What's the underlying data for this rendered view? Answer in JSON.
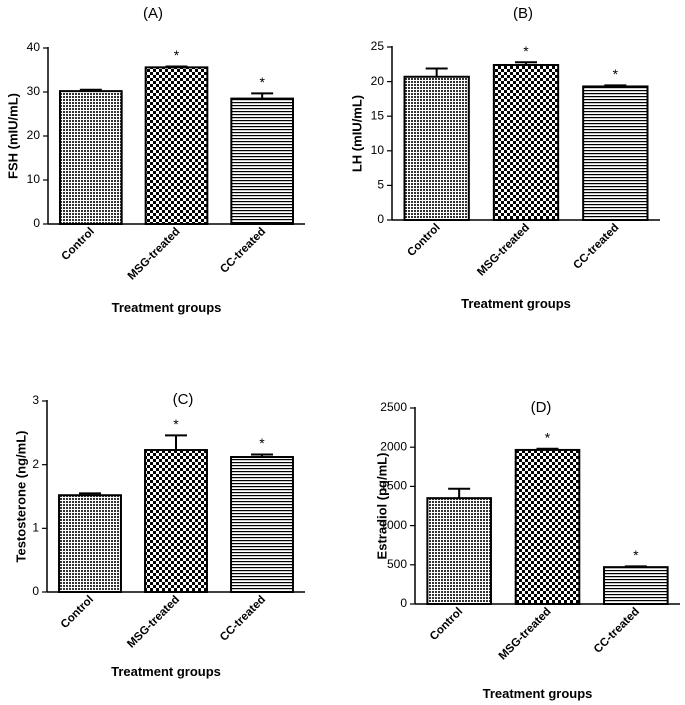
{
  "chart_data": [
    {
      "id": "A",
      "type": "bar",
      "panel_label": "(A)",
      "title": "",
      "xlabel": "Treatment groups",
      "ylabel": "FSH (mIU/mL)",
      "categories": [
        "Control",
        "MSG-treated",
        "CC-treated"
      ],
      "values": [
        30.2,
        35.6,
        28.5
      ],
      "errors": [
        0.3,
        0.2,
        1.2
      ],
      "significance": [
        "",
        "*",
        "*"
      ],
      "ylim": [
        0,
        40
      ],
      "yticks": [
        0,
        10,
        20,
        30,
        40
      ],
      "patterns": [
        "cross",
        "checker",
        "hlines"
      ]
    },
    {
      "id": "B",
      "type": "bar",
      "panel_label": "(B)",
      "title": "",
      "xlabel": "Treatment groups",
      "ylabel": "LH (mIU/mL)",
      "categories": [
        "Control",
        "MSG-treated",
        "CC-treated"
      ],
      "values": [
        20.7,
        22.4,
        19.3
      ],
      "errors": [
        1.2,
        0.4,
        0.15
      ],
      "significance": [
        "",
        "*",
        "*"
      ],
      "ylim": [
        0,
        25
      ],
      "yticks": [
        0,
        5,
        10,
        15,
        20,
        25
      ],
      "patterns": [
        "cross",
        "checker",
        "hlines"
      ]
    },
    {
      "id": "C",
      "type": "bar",
      "panel_label": "(C)",
      "title": "",
      "xlabel": "Treatment groups",
      "ylabel": "Testosterone (ng/mL)",
      "categories": [
        "Control",
        "MSG-treated",
        "CC-treated"
      ],
      "values": [
        1.52,
        2.23,
        2.12
      ],
      "errors": [
        0.03,
        0.23,
        0.04
      ],
      "significance": [
        "",
        "*",
        "*"
      ],
      "ylim": [
        0,
        3
      ],
      "yticks": [
        0,
        1,
        2,
        3
      ],
      "patterns": [
        "cross",
        "checker",
        "hlines"
      ]
    },
    {
      "id": "D",
      "type": "bar",
      "panel_label": "(D)",
      "title": "",
      "xlabel": "Treatment groups",
      "ylabel": "Estradiol (pg/mL)",
      "categories": [
        "Control",
        "MSG-treated",
        "CC-treated"
      ],
      "values": [
        1350,
        1965,
        470
      ],
      "errors": [
        120,
        15,
        10
      ],
      "significance": [
        "",
        "*",
        "*"
      ],
      "ylim": [
        0,
        2500
      ],
      "yticks": [
        0,
        500,
        1000,
        1500,
        2000,
        2500
      ],
      "patterns": [
        "cross",
        "checker",
        "hlines"
      ]
    }
  ]
}
